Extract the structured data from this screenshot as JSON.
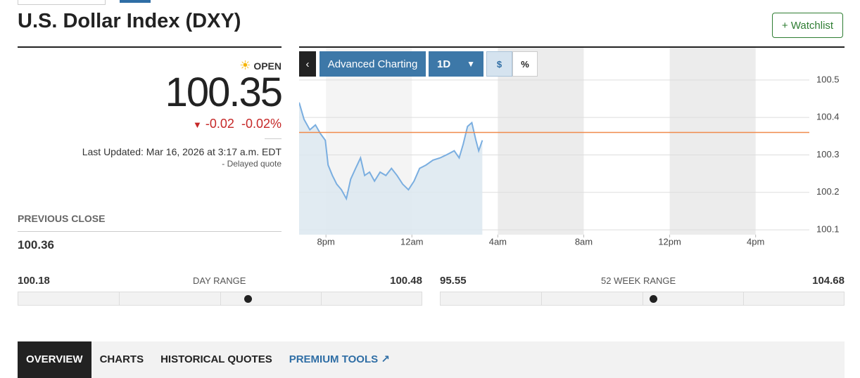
{
  "header": {
    "title": "U.S. Dollar Index (DXY)",
    "watchlist": "+ Watchlist"
  },
  "quote": {
    "status": "OPEN",
    "price": 100.35,
    "change": -0.02,
    "change_pct": "-0.02%",
    "last_updated": "Last Updated: Mar 16, 2026 at 3:17 a.m. EDT",
    "delayed": "-  Delayed quote"
  },
  "previous_close": {
    "label": "PREVIOUS CLOSE",
    "value": 100.36
  },
  "day_range": {
    "label": "DAY RANGE",
    "low": 100.18,
    "high": 100.48
  },
  "week52_range": {
    "label": "52 WEEK RANGE",
    "low": 95.55,
    "high": 104.68
  },
  "toolbar": {
    "back": "‹",
    "advanced": "Advanced Charting",
    "interval": "1D",
    "dollar": "$",
    "percent": "%"
  },
  "tabs": [
    "OVERVIEW",
    "CHARTS",
    "HISTORICAL QUOTES",
    "PREMIUM TOOLS"
  ],
  "chart_data": {
    "type": "line",
    "color": "#7aaee0",
    "area_color": "#dce8f0",
    "reference_color": "#f08a4b",
    "x": [
      -5.25,
      -5.02,
      -4.75,
      -4.49,
      -4.26,
      -4.03,
      -3.9,
      -3.7,
      -3.5,
      -3.28,
      -3.05,
      -2.85,
      -2.62,
      -2.39,
      -2.2,
      -1.97,
      -1.74,
      -1.48,
      -1.21,
      -0.95,
      -0.69,
      -0.43,
      -0.16,
      0.1,
      0.36,
      0.66,
      0.98,
      1.31,
      1.64,
      1.97,
      2.2,
      2.39,
      2.59,
      2.79,
      2.98,
      3.11,
      3.28
    ],
    "values": [
      100.44,
      100.395,
      100.367,
      100.38,
      100.357,
      100.339,
      100.273,
      100.245,
      100.222,
      100.207,
      100.183,
      100.235,
      100.264,
      100.292,
      100.245,
      100.254,
      100.23,
      100.254,
      100.245,
      100.264,
      100.245,
      100.222,
      100.207,
      100.23,
      100.264,
      100.273,
      100.286,
      100.292,
      100.301,
      100.311,
      100.292,
      100.329,
      100.376,
      100.386,
      100.339,
      100.311,
      100.339
    ],
    "xlim": [
      -5.25,
      18.5
    ],
    "xticks": [
      {
        "value": -4,
        "label": "8pm"
      },
      {
        "value": 0,
        "label": "12am"
      },
      {
        "value": 4,
        "label": "4am"
      },
      {
        "value": 8,
        "label": "8am"
      },
      {
        "value": 12,
        "label": "12pm"
      },
      {
        "value": 16,
        "label": "4pm"
      }
    ],
    "ylim": [
      100.087,
      100.586
    ],
    "yticks": [
      100.1,
      100.2,
      100.3,
      100.4,
      100.5
    ],
    "grid": true
  }
}
